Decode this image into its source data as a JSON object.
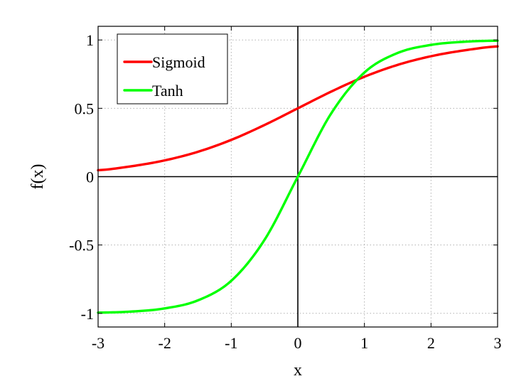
{
  "chart_data": {
    "type": "line",
    "title": "",
    "xlabel": "x",
    "ylabel": "f(x)",
    "xlim": [
      -3,
      3
    ],
    "ylim": [
      -1.1,
      1.1
    ],
    "grid": true,
    "zero_lines": true,
    "legend_position": "top-left",
    "x_ticks": [
      -3,
      -2,
      -1,
      0,
      1,
      2,
      3
    ],
    "x_tick_labels": [
      "-3",
      "-2",
      "-1",
      "0",
      "1",
      "2",
      "3"
    ],
    "y_ticks": [
      -1,
      -0.5,
      0,
      0.5,
      1
    ],
    "y_tick_labels": [
      "-1",
      "-0.5",
      "0",
      "0.5",
      "1"
    ],
    "x": [
      -3,
      -2.5,
      -2,
      -1.5,
      -1,
      -0.5,
      0,
      0.5,
      1,
      1.5,
      2,
      2.5,
      3
    ],
    "series": [
      {
        "name": "Sigmoid",
        "color": "#ff0000",
        "values": [
          0.047,
          0.076,
          0.119,
          0.182,
          0.269,
          0.378,
          0.5,
          0.622,
          0.731,
          0.818,
          0.881,
          0.924,
          0.953
        ]
      },
      {
        "name": "Tanh",
        "color": "#00ff00",
        "values": [
          -0.995,
          -0.987,
          -0.964,
          -0.905,
          -0.762,
          -0.462,
          0,
          0.462,
          0.762,
          0.905,
          0.964,
          0.987,
          0.995
        ]
      }
    ]
  }
}
